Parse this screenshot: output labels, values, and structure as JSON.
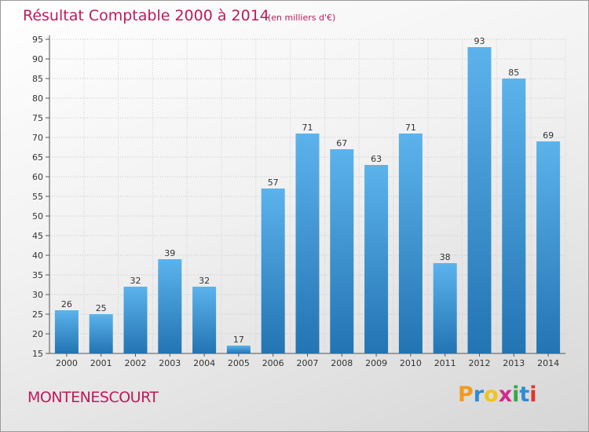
{
  "title": "Résultat Comptable 2000 à 2014",
  "subtitle": "(en milliers d'€)",
  "place": "MONTENESCOURT",
  "brand": {
    "text": "Proxiti",
    "colors": [
      "#f39a1e",
      "#2e8bd6",
      "#f0c419",
      "#d02b8a",
      "#3aa64a",
      "#2e8bd6",
      "#e6332a"
    ]
  },
  "colors": {
    "bar_top": "#5cb3ec",
    "bar_bottom": "#2274b2",
    "accent": "#c0195a"
  },
  "chart_data": {
    "type": "bar",
    "categories": [
      "2000",
      "2001",
      "2002",
      "2003",
      "2004",
      "2005",
      "2006",
      "2007",
      "2008",
      "2009",
      "2010",
      "2011",
      "2012",
      "2013",
      "2014"
    ],
    "values": [
      26,
      25,
      32,
      39,
      32,
      17,
      57,
      71,
      67,
      63,
      71,
      38,
      93,
      85,
      69
    ],
    "title": "Résultat Comptable 2000 à 2014",
    "subtitle": "(en milliers d'€)",
    "ylim": [
      15,
      95
    ],
    "yticks": [
      15,
      20,
      25,
      30,
      35,
      40,
      45,
      50,
      55,
      60,
      65,
      70,
      75,
      80,
      85,
      90,
      95
    ],
    "grid": true,
    "data_labels": true
  }
}
